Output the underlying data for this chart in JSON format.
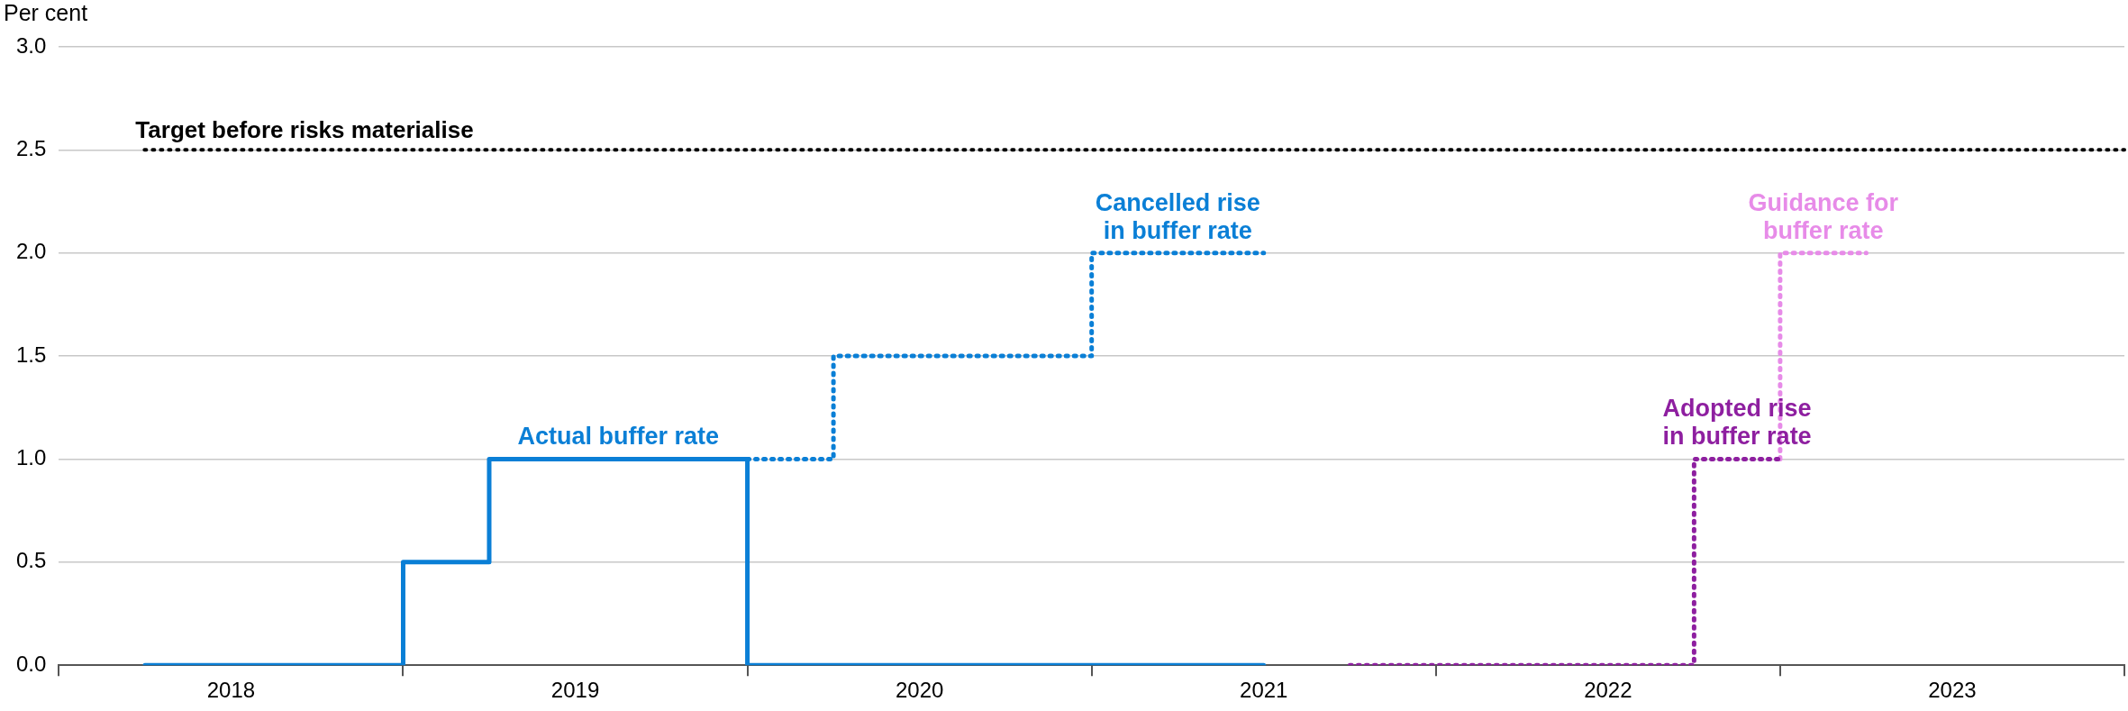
{
  "chart_data": {
    "type": "step",
    "ylabel": "Per cent",
    "xlim": [
      "2018-01",
      "2024-01"
    ],
    "xticks": [
      {
        "value": "2018-01",
        "label": null
      },
      {
        "value": "2018-07",
        "label": "2018"
      },
      {
        "value": "2019-01",
        "label": null
      },
      {
        "value": "2019-07",
        "label": "2019"
      },
      {
        "value": "2020-01",
        "label": null
      },
      {
        "value": "2020-07",
        "label": "2020"
      },
      {
        "value": "2021-01",
        "label": null
      },
      {
        "value": "2021-07",
        "label": "2021"
      },
      {
        "value": "2022-01",
        "label": null
      },
      {
        "value": "2022-07",
        "label": "2022"
      },
      {
        "value": "2023-01",
        "label": null
      },
      {
        "value": "2023-07",
        "label": "2023"
      },
      {
        "value": "2024-01",
        "label": null
      }
    ],
    "ylim": [
      0,
      3
    ],
    "yticks": [
      {
        "value": 0,
        "label": "0.0"
      },
      {
        "value": 0.5,
        "label": "0.5"
      },
      {
        "value": 1,
        "label": "1.0"
      },
      {
        "value": 1.5,
        "label": "1.5"
      },
      {
        "value": 2,
        "label": "2.0"
      },
      {
        "value": 2.5,
        "label": "2.5"
      },
      {
        "value": 3,
        "label": "3.0"
      }
    ],
    "grid": "y",
    "legend": false,
    "series": [
      {
        "name": "Actual buffer rate",
        "color": "#0a7fd6",
        "line_style": "solid",
        "x": [
          "2018-04",
          "2019-01",
          "2019-04",
          "2020-01",
          "2021-07"
        ],
        "values": [
          0,
          0.5,
          1,
          0,
          0
        ]
      },
      {
        "name": "Cancelled rise in buffer rate",
        "color": "#0a7fd6",
        "line_style": "dotted",
        "x": [
          "2020-01",
          "2020-04",
          "2021-01",
          "2021-07"
        ],
        "values": [
          1,
          1.5,
          2,
          2
        ]
      },
      {
        "name": "Adopted rise in buffer rate",
        "color": "#8e1fa0",
        "line_style": "dotted",
        "x": [
          "2021-10",
          "2022-10",
          "2023-01"
        ],
        "values": [
          0,
          1,
          1
        ]
      },
      {
        "name": "Guidance for buffer rate",
        "color": "#e78be8",
        "line_style": "dotted",
        "x": [
          "2023-01",
          "2023-01",
          "2023-04"
        ],
        "values": [
          1,
          2,
          2
        ]
      }
    ],
    "ref_lines": [
      {
        "axis": "y",
        "value": 2.5,
        "label": "Target before risks materialise",
        "color": "#000000",
        "line_style": "dotted"
      }
    ]
  }
}
